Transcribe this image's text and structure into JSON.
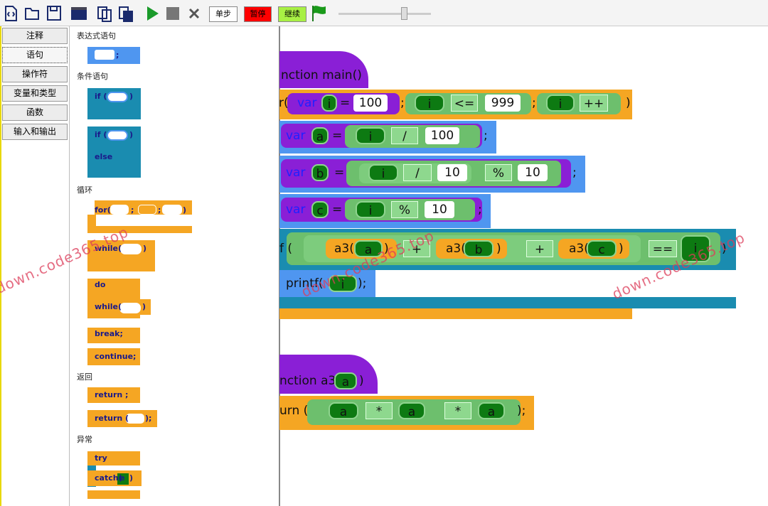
{
  "toolbar": {
    "buttons": [
      "单步",
      "暂停",
      "继续"
    ]
  },
  "categories": [
    "注释",
    "语句",
    "操作符",
    "变量和类型",
    "函数",
    "输入和输出"
  ],
  "palette": {
    "sections": [
      {
        "title": "表达式语句",
        "blocks": [
          [
            ";"
          ]
        ]
      },
      {
        "title": "条件语句",
        "blocks": [
          [
            "if (",
            ")"
          ],
          [
            "if (",
            ")",
            "else"
          ]
        ]
      },
      {
        "title": "循环",
        "blocks": [
          [
            "for(",
            ";",
            ";",
            ")"
          ],
          [
            "while(",
            ")"
          ],
          [
            "do",
            "while(",
            ")"
          ],
          [
            "break;"
          ],
          [
            "continue;"
          ]
        ]
      },
      {
        "title": "返回",
        "blocks": [
          [
            "return ;"
          ],
          [
            "return (",
            ");"
          ]
        ]
      },
      {
        "title": "异常",
        "blocks": [
          [
            "try",
            "catch(",
            "e",
            ")"
          ]
        ]
      }
    ]
  },
  "workspace": {
    "lines": [
      [
        "nction main()"
      ],
      [
        "r(",
        "var",
        "i",
        "=",
        "100",
        ";",
        "i",
        "<=",
        "999",
        ";",
        "i",
        "++",
        ")"
      ],
      [
        "var",
        "a",
        "=",
        "i",
        "/",
        "100",
        ";"
      ],
      [
        "var",
        "b",
        "=",
        "i",
        "/",
        "10",
        "%",
        "10",
        ";"
      ],
      [
        "var",
        "c",
        "=",
        "i",
        "%",
        "10",
        ";"
      ],
      [
        "f (",
        "a3(",
        "a",
        ")",
        "+",
        "a3(",
        "b",
        ")",
        "+",
        "a3(",
        "c",
        ")",
        "==",
        "i",
        ")"
      ],
      [
        "printf(",
        "i",
        ");"
      ],
      [
        "nction a3(",
        "a",
        ")"
      ],
      [
        "urn (",
        "a",
        "*",
        "a",
        "*",
        "a",
        ");"
      ]
    ]
  },
  "watermark": "down.code365.top"
}
